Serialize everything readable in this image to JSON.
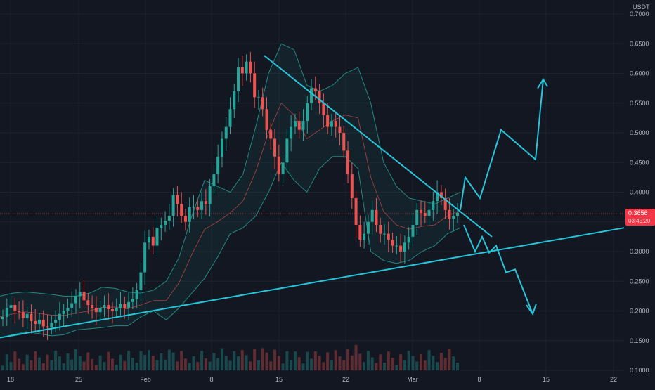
{
  "chart_data": {
    "type": "candlestick",
    "unit": "USDT",
    "ylim": [
      0.1,
      0.7
    ],
    "log_scale": false,
    "grid": true,
    "y_ticks": [
      "0.1000",
      "0.1500",
      "0.2000",
      "0.2500",
      "0.3000",
      "0.3500",
      "0.4000",
      "0.4500",
      "0.5000",
      "0.5500",
      "0.6000",
      "0.6500",
      "0.7000"
    ],
    "x_ticks": [
      "18",
      "25",
      "Feb",
      "8",
      "15",
      "22",
      "Mar",
      "8",
      "15",
      "22"
    ],
    "last_price": "0.3656",
    "last_price_sub": "03:45:20",
    "colors": {
      "background": "#131722",
      "up": "#26a69a",
      "down": "#ef5350",
      "bands": "#26a69a",
      "basis": "#ef5350",
      "trendlines": "#26c6da",
      "price_line": "#f23645"
    },
    "candles_close": [
      0.19,
      0.205,
      0.21,
      0.2,
      0.198,
      0.188,
      0.195,
      0.183,
      0.178,
      0.185,
      0.174,
      0.172,
      0.18,
      0.185,
      0.195,
      0.2,
      0.205,
      0.213,
      0.225,
      0.232,
      0.218,
      0.21,
      0.205,
      0.198,
      0.205,
      0.21,
      0.203,
      0.2,
      0.205,
      0.212,
      0.205,
      0.215,
      0.22,
      0.235,
      0.265,
      0.315,
      0.325,
      0.31,
      0.34,
      0.345,
      0.352,
      0.36,
      0.395,
      0.38,
      0.36,
      0.35,
      0.375,
      0.375,
      0.37,
      0.385,
      0.38,
      0.41,
      0.43,
      0.46,
      0.49,
      0.51,
      0.54,
      0.57,
      0.61,
      0.6,
      0.62,
      0.6,
      0.56,
      0.56,
      0.54,
      0.505,
      0.49,
      0.46,
      0.43,
      0.45,
      0.49,
      0.51,
      0.52,
      0.505,
      0.52,
      0.55,
      0.575,
      0.57,
      0.55,
      0.53,
      0.51,
      0.52,
      0.51,
      0.5,
      0.47,
      0.43,
      0.39,
      0.345,
      0.32,
      0.33,
      0.35,
      0.37,
      0.345,
      0.33,
      0.33,
      0.32,
      0.31,
      0.31,
      0.3,
      0.315,
      0.325,
      0.345,
      0.37,
      0.365,
      0.36,
      0.37,
      0.385,
      0.4,
      0.39,
      0.37,
      0.355,
      0.36,
      0.3656
    ],
    "bollinger": {
      "upper": [
        0.225,
        0.23,
        0.232,
        0.23,
        0.228,
        0.225,
        0.225,
        0.23,
        0.24,
        0.238,
        0.232,
        0.23,
        0.235,
        0.25,
        0.29,
        0.36,
        0.42,
        0.41,
        0.4,
        0.43,
        0.51,
        0.6,
        0.65,
        0.64,
        0.58,
        0.57,
        0.58,
        0.6,
        0.61,
        0.55,
        0.45,
        0.41,
        0.39,
        0.385,
        0.38,
        0.39,
        0.4
      ],
      "lower": [
        0.155,
        0.16,
        0.165,
        0.162,
        0.158,
        0.16,
        0.168,
        0.17,
        0.172,
        0.175,
        0.175,
        0.19,
        0.2,
        0.185,
        0.205,
        0.23,
        0.255,
        0.29,
        0.33,
        0.34,
        0.36,
        0.4,
        0.45,
        0.42,
        0.4,
        0.44,
        0.46,
        0.46,
        0.44,
        0.3,
        0.285,
        0.28,
        0.285,
        0.3,
        0.31,
        0.33,
        0.34
      ]
    },
    "annotations": {
      "descending_trendline": [
        [
          "14",
          0.63
        ],
        [
          "Mar",
          0.3
        ]
      ],
      "ascending_trendline": [
        [
          "18",
          0.155
        ],
        [
          "22",
          0.34
        ]
      ],
      "bullish_projection": [
        0.37,
        0.425,
        0.39,
        0.505,
        0.455,
        0.59
      ],
      "bearish_projection": [
        0.345,
        0.3,
        0.325,
        0.298,
        0.31,
        0.265,
        0.27,
        0.195
      ]
    }
  }
}
